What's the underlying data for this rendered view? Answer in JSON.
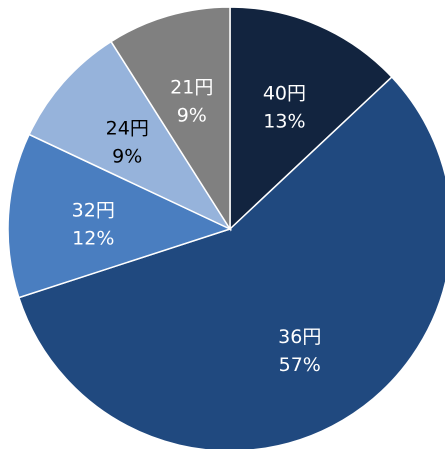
{
  "chart_data": {
    "type": "pie",
    "start": "12 o'clock",
    "direction": "clockwise",
    "slices": [
      {
        "category": "40円",
        "value": 13,
        "label": "13%",
        "color": "#12243f",
        "label_color": "#ffffff"
      },
      {
        "category": "36円",
        "value": 57,
        "label": "57%",
        "color": "#20497f",
        "label_color": "#ffffff"
      },
      {
        "category": "32円",
        "value": 12,
        "label": "12%",
        "color": "#4a7ec0",
        "label_color": "#ffffff"
      },
      {
        "category": "24円",
        "value": 9,
        "label": "9%",
        "color": "#96b3db",
        "label_color": "#000000"
      },
      {
        "category": "21円",
        "value": 9,
        "label": "9%",
        "color": "#808080",
        "label_color": "#ffffff"
      }
    ],
    "title": "",
    "legend": "none"
  }
}
